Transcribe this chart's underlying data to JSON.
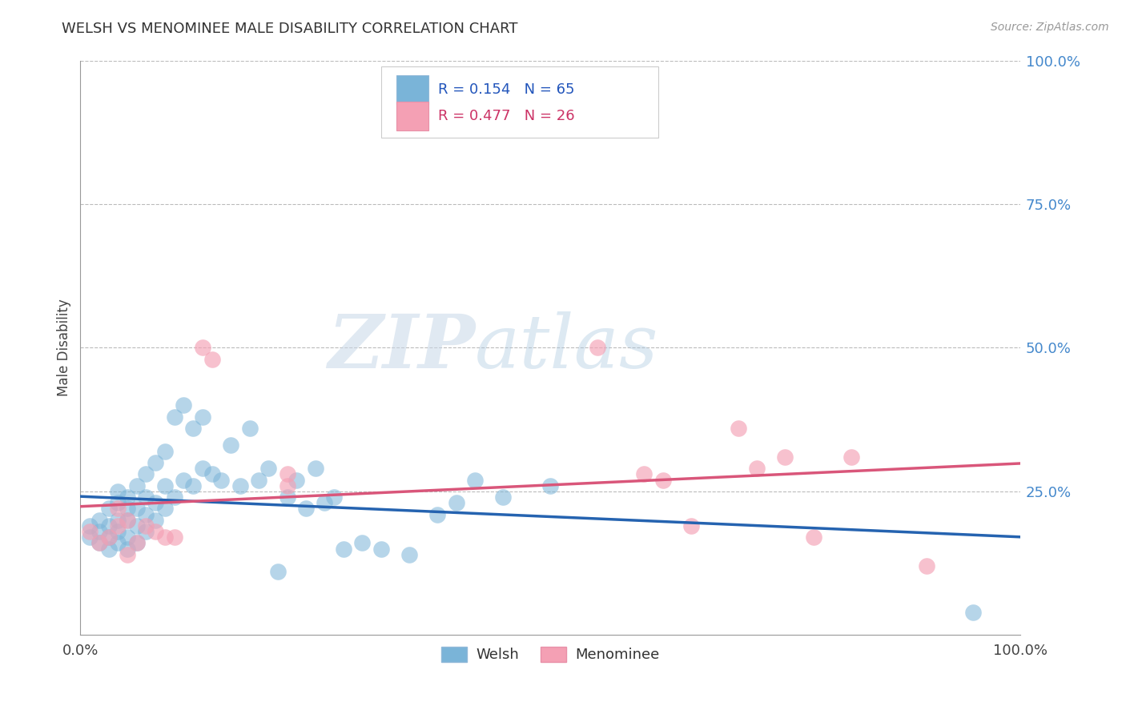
{
  "title": "WELSH VS MENOMINEE MALE DISABILITY CORRELATION CHART",
  "source": "Source: ZipAtlas.com",
  "ylabel": "Male Disability",
  "xlim": [
    0.0,
    1.0
  ],
  "ylim": [
    0.0,
    1.0
  ],
  "x_tick_labels": [
    "0.0%",
    "100.0%"
  ],
  "y_tick_labels": [
    "25.0%",
    "50.0%",
    "75.0%",
    "100.0%"
  ],
  "y_tick_positions": [
    0.25,
    0.5,
    0.75,
    1.0
  ],
  "legend_r_welsh": "R = 0.154",
  "legend_n_welsh": "N = 65",
  "legend_r_menominee": "R = 0.477",
  "legend_n_menominee": "N = 26",
  "welsh_color": "#7ab4d8",
  "menominee_color": "#f4a0b4",
  "welsh_line_color": "#2563b0",
  "menominee_line_color": "#d9567a",
  "watermark_zip": "ZIP",
  "watermark_atlas": "atlas",
  "welsh_x": [
    0.01,
    0.01,
    0.02,
    0.02,
    0.02,
    0.03,
    0.03,
    0.03,
    0.03,
    0.04,
    0.04,
    0.04,
    0.04,
    0.04,
    0.05,
    0.05,
    0.05,
    0.05,
    0.05,
    0.06,
    0.06,
    0.06,
    0.06,
    0.07,
    0.07,
    0.07,
    0.07,
    0.08,
    0.08,
    0.08,
    0.09,
    0.09,
    0.09,
    0.1,
    0.1,
    0.11,
    0.11,
    0.12,
    0.12,
    0.13,
    0.13,
    0.14,
    0.15,
    0.16,
    0.17,
    0.18,
    0.19,
    0.2,
    0.21,
    0.22,
    0.23,
    0.24,
    0.25,
    0.26,
    0.27,
    0.28,
    0.3,
    0.32,
    0.35,
    0.38,
    0.4,
    0.42,
    0.45,
    0.5,
    0.95
  ],
  "welsh_y": [
    0.17,
    0.19,
    0.16,
    0.18,
    0.2,
    0.15,
    0.17,
    0.19,
    0.22,
    0.16,
    0.18,
    0.2,
    0.23,
    0.25,
    0.15,
    0.17,
    0.2,
    0.22,
    0.24,
    0.16,
    0.19,
    0.22,
    0.26,
    0.18,
    0.21,
    0.24,
    0.28,
    0.2,
    0.23,
    0.3,
    0.22,
    0.26,
    0.32,
    0.24,
    0.38,
    0.27,
    0.4,
    0.26,
    0.36,
    0.29,
    0.38,
    0.28,
    0.27,
    0.33,
    0.26,
    0.36,
    0.27,
    0.29,
    0.11,
    0.24,
    0.27,
    0.22,
    0.29,
    0.23,
    0.24,
    0.15,
    0.16,
    0.15,
    0.14,
    0.21,
    0.23,
    0.27,
    0.24,
    0.26,
    0.04
  ],
  "menominee_x": [
    0.01,
    0.02,
    0.03,
    0.04,
    0.04,
    0.05,
    0.05,
    0.06,
    0.07,
    0.08,
    0.09,
    0.1,
    0.13,
    0.14,
    0.22,
    0.22,
    0.55,
    0.6,
    0.62,
    0.65,
    0.7,
    0.72,
    0.75,
    0.78,
    0.82,
    0.9
  ],
  "menominee_y": [
    0.18,
    0.16,
    0.17,
    0.19,
    0.22,
    0.14,
    0.2,
    0.16,
    0.19,
    0.18,
    0.17,
    0.17,
    0.5,
    0.48,
    0.26,
    0.28,
    0.5,
    0.28,
    0.27,
    0.19,
    0.36,
    0.29,
    0.31,
    0.17,
    0.31,
    0.12
  ]
}
